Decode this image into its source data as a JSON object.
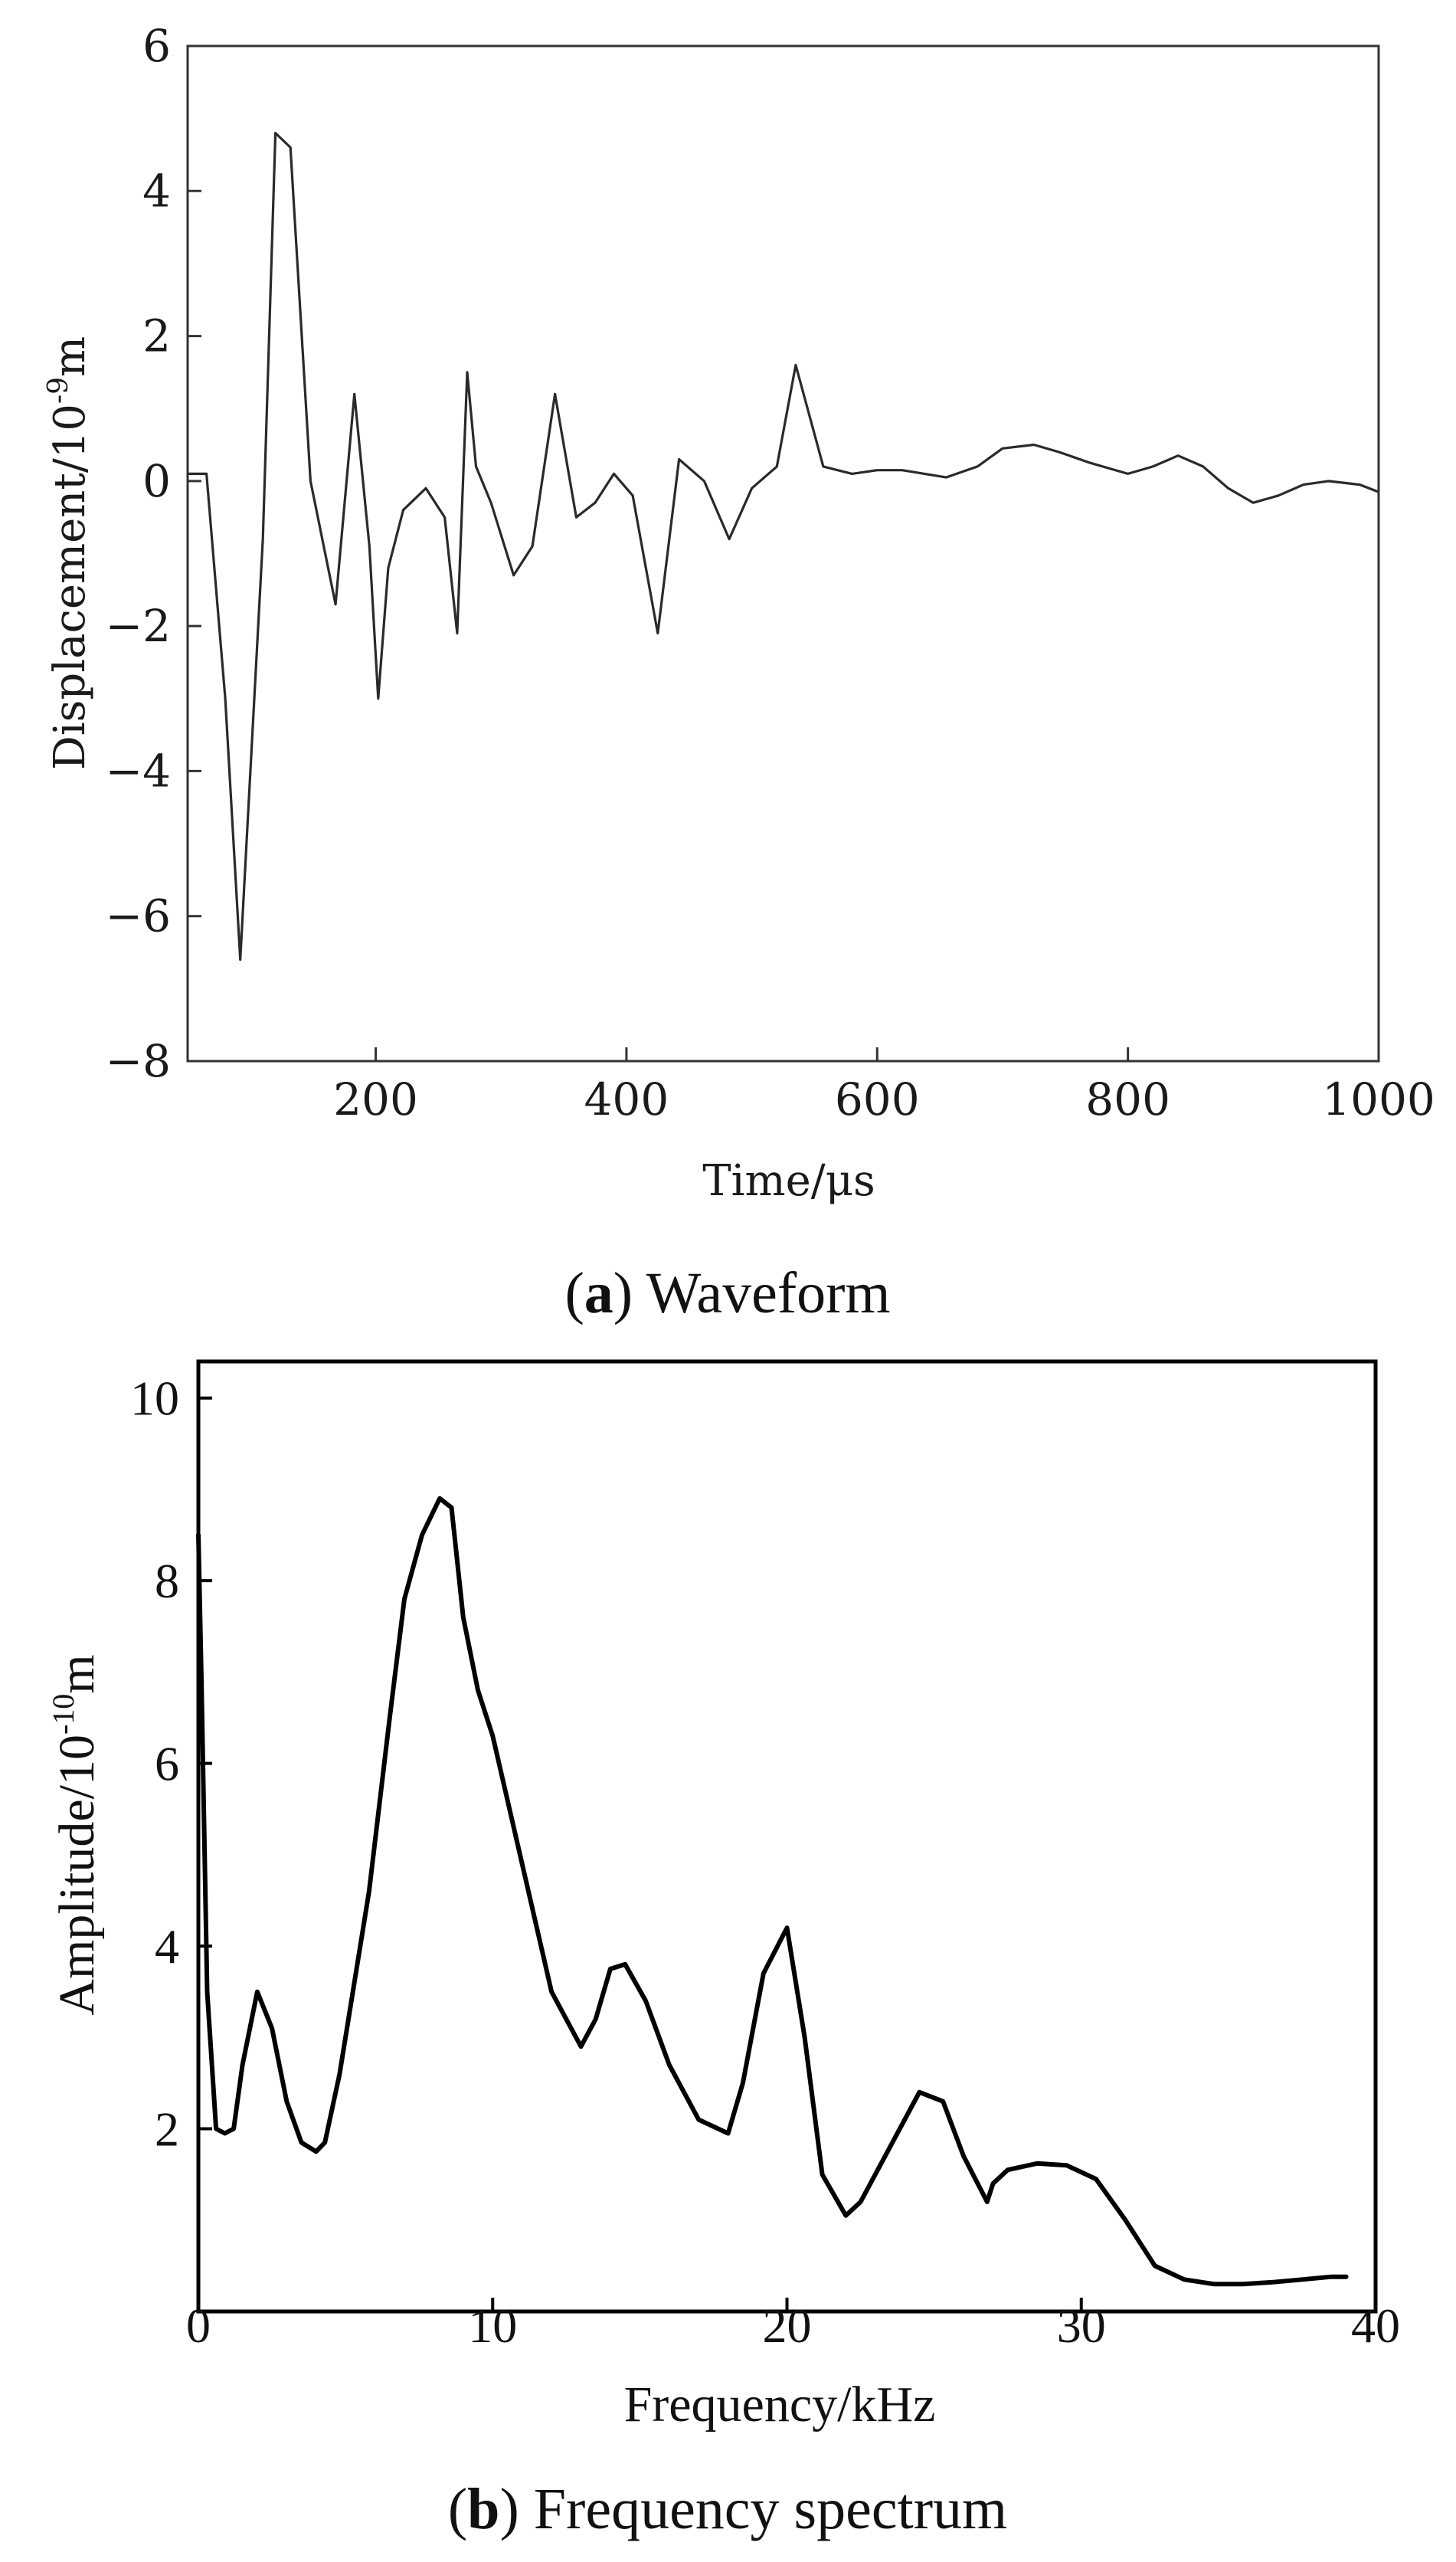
{
  "figure": {
    "panel_a_letter": "a",
    "panel_a_caption": "Waveform",
    "panel_b_letter": "b",
    "panel_b_caption": "Frequency spectrum"
  },
  "chart_data": [
    {
      "type": "line",
      "title": "Waveform",
      "xlabel": "Time/μs",
      "ylabel_main": "Displacement/10",
      "ylabel_exp": "-9",
      "ylabel_unit": "m",
      "xlim": [
        50,
        1000
      ],
      "ylim": [
        -8,
        6
      ],
      "xticks": [
        200,
        400,
        600,
        800,
        1000
      ],
      "yticks": [
        -8,
        -6,
        -4,
        -2,
        0,
        2,
        4,
        6
      ],
      "tick_labels_x": [
        "200",
        "400",
        "600",
        "800",
        "1000"
      ],
      "tick_labels_y": [
        "−8",
        "−6",
        "−4",
        "−2",
        "0",
        "2",
        "4",
        "6"
      ],
      "series": [
        {
          "name": "displacement",
          "x": [
            50,
            65,
            80,
            92,
            110,
            120,
            132,
            148,
            168,
            183,
            195,
            202,
            210,
            222,
            240,
            255,
            265,
            273,
            280,
            292,
            310,
            325,
            343,
            360,
            375,
            390,
            405,
            425,
            442,
            462,
            482,
            500,
            520,
            535,
            557,
            580,
            600,
            620,
            655,
            680,
            700,
            725,
            745,
            770,
            800,
            820,
            840,
            860,
            880,
            900,
            920,
            940,
            960,
            985,
            1000
          ],
          "y": [
            0.1,
            0.1,
            -3.0,
            -6.6,
            -0.8,
            4.8,
            4.6,
            0.0,
            -1.7,
            1.2,
            -0.9,
            -3.0,
            -1.2,
            -0.4,
            -0.1,
            -0.5,
            -2.1,
            1.5,
            0.2,
            -0.3,
            -1.3,
            -0.9,
            1.2,
            -0.5,
            -0.3,
            0.1,
            -0.2,
            -2.1,
            0.3,
            0.0,
            -0.8,
            -0.1,
            0.2,
            1.6,
            0.2,
            0.1,
            0.15,
            0.15,
            0.05,
            0.2,
            0.45,
            0.5,
            0.4,
            0.25,
            0.1,
            0.2,
            0.35,
            0.2,
            -0.1,
            -0.3,
            -0.2,
            -0.05,
            0.0,
            -0.05,
            -0.15
          ]
        }
      ]
    },
    {
      "type": "line",
      "title": "Frequency spectrum",
      "xlabel": "Frequency/kHz",
      "ylabel_main": "Amplitude/10",
      "ylabel_exp": "-10",
      "ylabel_unit": "m",
      "xlim": [
        0,
        40
      ],
      "ylim": [
        0,
        10.4
      ],
      "xticks": [
        0,
        10,
        20,
        30,
        40
      ],
      "yticks": [
        2,
        4,
        6,
        8,
        10
      ],
      "tick_labels_x": [
        "0",
        "10",
        "20",
        "30",
        "40"
      ],
      "tick_labels_y": [
        "2",
        "4",
        "6",
        "8",
        "10"
      ],
      "series": [
        {
          "name": "amplitude",
          "x": [
            0.0,
            0.1,
            0.3,
            0.6,
            0.9,
            1.2,
            1.5,
            2.0,
            2.5,
            3.0,
            3.5,
            4.0,
            4.3,
            4.8,
            5.2,
            5.8,
            6.5,
            7.0,
            7.6,
            8.2,
            8.6,
            9.0,
            9.5,
            10.0,
            11.0,
            12.0,
            13.0,
            13.5,
            14.0,
            14.5,
            15.2,
            16.0,
            17.0,
            18.0,
            18.5,
            19.2,
            20.0,
            20.6,
            21.2,
            22.0,
            22.5,
            23.5,
            24.5,
            25.3,
            26.0,
            26.8,
            27.0,
            27.5,
            28.5,
            29.5,
            30.5,
            31.5,
            32.5,
            33.5,
            34.5,
            35.5,
            36.5,
            37.5,
            38.5,
            39.0
          ],
          "y": [
            8.5,
            7.0,
            3.5,
            2.0,
            1.95,
            2.0,
            2.7,
            3.5,
            3.1,
            2.3,
            1.85,
            1.75,
            1.85,
            2.6,
            3.4,
            4.6,
            6.5,
            7.8,
            8.5,
            8.9,
            8.8,
            7.6,
            6.8,
            6.3,
            4.9,
            3.5,
            2.9,
            3.2,
            3.75,
            3.8,
            3.4,
            2.7,
            2.1,
            1.95,
            2.5,
            3.7,
            4.2,
            3.0,
            1.5,
            1.05,
            1.2,
            1.8,
            2.4,
            2.3,
            1.7,
            1.2,
            1.4,
            1.55,
            1.62,
            1.6,
            1.45,
            1.0,
            0.5,
            0.35,
            0.3,
            0.3,
            0.32,
            0.35,
            0.38,
            0.38
          ]
        }
      ]
    }
  ]
}
